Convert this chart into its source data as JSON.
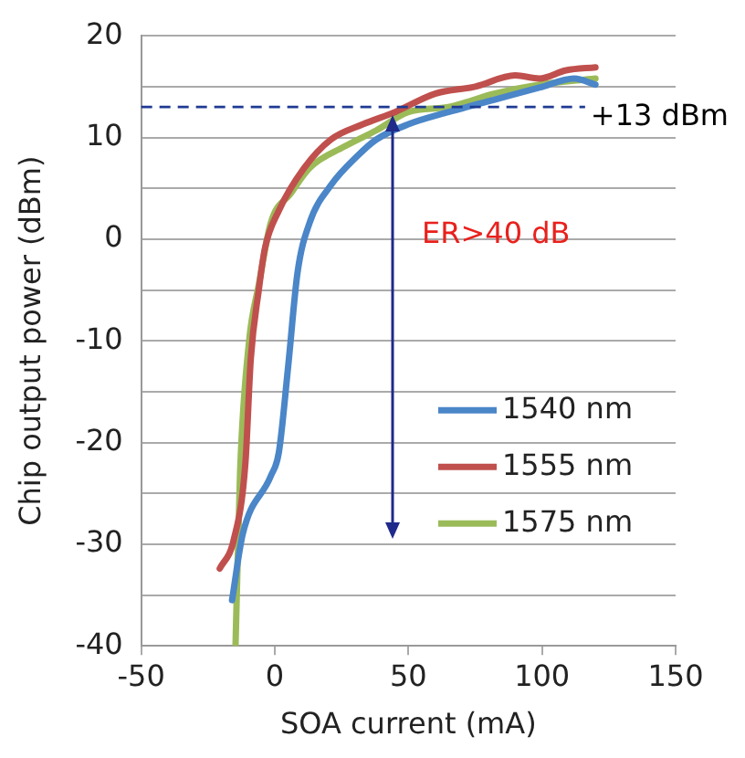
{
  "chart_data": {
    "type": "line",
    "xlabel": "SOA current (mA)",
    "ylabel": "Chip output power (dBm)",
    "xlim": [
      -50,
      150
    ],
    "xticks": [
      -50,
      0,
      50,
      100,
      150
    ],
    "ylim": [
      -40,
      20
    ],
    "yticks": [
      -40,
      {
        "value": -35,
        "label": null
      },
      -30,
      {
        "value": -25,
        "label": null
      },
      -20,
      {
        "value": -15,
        "label": null
      },
      -10,
      {
        "value": -5,
        "label": null
      },
      0,
      {
        "value": 5,
        "label": null
      },
      10,
      {
        "value": 15,
        "label": null
      },
      20
    ],
    "grid": "y",
    "legend": "right",
    "marker": "none",
    "line_style": "solid",
    "series": [
      {
        "name": "1540 nm",
        "color": "#4a86c8",
        "x": [
          -16,
          -12,
          -1.5,
          1.5,
          5,
          8.5,
          13,
          21,
          31,
          38,
          50,
          65,
          82,
          99,
          112,
          120
        ],
        "values": [
          -35.5,
          -29,
          -23.3,
          -21,
          -12.5,
          -3.3,
          1.6,
          5.3,
          8.2,
          9.8,
          11.3,
          12.5,
          13.7,
          14.9,
          15.8,
          15.2
        ]
      },
      {
        "name": "1555 nm",
        "color": "#c0504d",
        "x": [
          -20.6,
          -15.4,
          -11,
          -9,
          -6,
          -3.7,
          1.5,
          11,
          21,
          33,
          45,
          60,
          75,
          90,
          99,
          109,
          120
        ],
        "values": [
          -32.4,
          -29.6,
          -22,
          -11.8,
          -5,
          -0.9,
          2.8,
          7,
          9.8,
          11.3,
          12.5,
          14.3,
          15,
          16.1,
          15.8,
          16.6,
          16.9
        ]
      },
      {
        "name": "1575 nm",
        "color": "#9bbb59",
        "x": [
          -14.7,
          -13,
          -9.6,
          -6,
          -1.5,
          6,
          13,
          26,
          38,
          50,
          65,
          82,
          99,
          120
        ],
        "values": [
          -40,
          -23,
          -10,
          -4.5,
          1.6,
          4.5,
          7,
          9.1,
          10.7,
          12.5,
          13,
          14.3,
          15.2,
          15.8
        ]
      }
    ],
    "ref_lines": [
      {
        "axis": "y",
        "value": 13,
        "label": "+13 dBm",
        "color": "#1f3a93",
        "line_style": "dashed"
      }
    ],
    "annotations": [
      "ER>40 dB"
    ]
  }
}
